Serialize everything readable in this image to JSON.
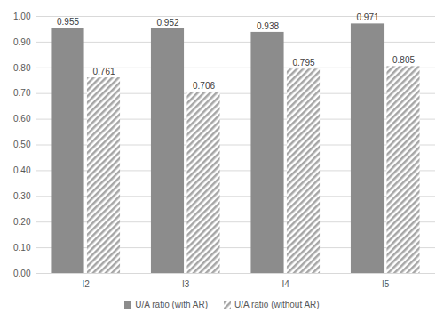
{
  "chart_data": {
    "type": "bar",
    "categories": [
      "I2",
      "I3",
      "I4",
      "I5"
    ],
    "series": [
      {
        "name": "U/A ratio (with AR)",
        "color": "#8c8c8c",
        "values": [
          0.955,
          0.952,
          0.938,
          0.971
        ]
      },
      {
        "name": "U/A ratio (without AR)",
        "color": "#a6a6a6",
        "values": [
          0.761,
          0.706,
          0.795,
          0.805
        ]
      }
    ],
    "ylim": [
      0,
      1
    ],
    "yticks": [
      {
        "value": 0,
        "label": "0.00"
      },
      {
        "value": 0.1,
        "label": "0.10"
      },
      {
        "value": 0.2,
        "label": "0.20"
      },
      {
        "value": 0.3,
        "label": "0.30"
      },
      {
        "value": 0.4,
        "label": "0.40"
      },
      {
        "value": 0.5,
        "label": "0.50"
      },
      {
        "value": 0.6,
        "label": "0.60"
      },
      {
        "value": 0.7,
        "label": "0.70"
      },
      {
        "value": 0.8,
        "label": "0.80"
      },
      {
        "value": 0.9,
        "label": "0.90"
      },
      {
        "value": 1,
        "label": "1.00"
      }
    ],
    "grid": true,
    "data_labels": true,
    "legend": "bottom"
  }
}
